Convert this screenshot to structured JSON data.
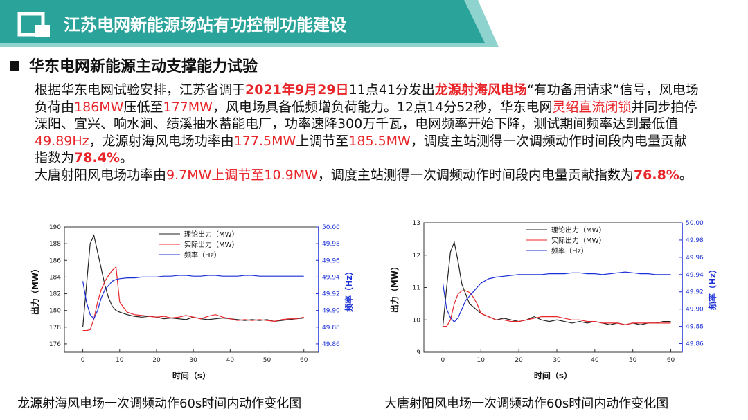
{
  "header": {
    "title": "江苏电网新能源场站有功控制功能建设"
  },
  "section": {
    "title": "华东电网新能源主动支撑能力试验"
  },
  "paragraphs": [
    [
      {
        "text": "根据华东电网试验安排，江苏省调于"
      },
      {
        "text": "2021年9月29日",
        "color": "#e8262a",
        "bold": true
      },
      {
        "text": "11点41分发出"
      },
      {
        "text": "龙源射海风电场",
        "color": "#e8262a",
        "bold": true
      },
      {
        "text": "“有功备用请求”信号，风电场负荷由"
      },
      {
        "text": "186MW",
        "color": "#e8262a"
      },
      {
        "text": "压低至"
      },
      {
        "text": "177MW",
        "color": "#e8262a"
      },
      {
        "text": "，风电场具备低频增负荷能力。12点14分52秒，华东电网"
      },
      {
        "text": "灵绍直流闭锁",
        "color": "#e8262a"
      },
      {
        "text": "并同步拍停溧阳、宜兴、响水涧、绩溪抽水蓄能电厂，功率速降300万千瓦，电网频率开始下降，测试期间频率达到最低值"
      },
      {
        "text": "49.89Hz",
        "color": "#e8262a"
      },
      {
        "text": "，龙源射海风电场功率由"
      },
      {
        "text": "177.5MW",
        "color": "#e8262a"
      },
      {
        "text": "上调节至"
      },
      {
        "text": "185.5MW",
        "color": "#e8262a"
      },
      {
        "text": "，调度主站测得一次调频动作时间段内电量贡献指数为"
      },
      {
        "text": "78.4%",
        "color": "#e8262a",
        "bold": true
      },
      {
        "text": "。"
      }
    ],
    [
      {
        "text": "大唐射阳风电场功率由"
      },
      {
        "text": "9.7MW上调节至10.9MW",
        "color": "#e8262a"
      },
      {
        "text": "，调度主站测得一次调频动作时间段内电量贡献指数为"
      },
      {
        "text": "76.8%",
        "color": "#e8262a",
        "bold": true
      },
      {
        "text": "。"
      }
    ]
  ],
  "chart_data": [
    {
      "type": "line",
      "caption": "龙源射海风电场一次调频动作60s时间内动作变化图",
      "xlabel": "时间（s）",
      "ylabel": "出力（MW）",
      "y2label": "频率（Hz）",
      "x": [
        0,
        1,
        2,
        3,
        4,
        5,
        6,
        7,
        8,
        9,
        10,
        12,
        14,
        16,
        18,
        20,
        22,
        24,
        26,
        28,
        30,
        32,
        34,
        36,
        38,
        40,
        42,
        44,
        46,
        48,
        50,
        52,
        54,
        56,
        58,
        60
      ],
      "xlim": [
        -5,
        64
      ],
      "xticks": [
        0,
        10,
        20,
        30,
        40,
        50,
        60
      ],
      "ylim": [
        175,
        190
      ],
      "yticks": [
        176,
        178,
        180,
        182,
        184,
        186,
        188,
        190
      ],
      "y2lim": [
        49.85,
        50.0
      ],
      "y2ticks": [
        {
          "value": 49.86,
          "label": "49.86"
        },
        {
          "value": 49.88,
          "label": "49.88"
        },
        {
          "value": 49.9,
          "label": "49.90"
        },
        {
          "value": 49.92,
          "label": "49.92"
        },
        {
          "value": 49.94,
          "label": "49.94"
        },
        {
          "value": 49.96,
          "label": "49.96"
        },
        {
          "value": 49.98,
          "label": "49.98"
        },
        {
          "value": 50,
          "label": "50.00"
        }
      ],
      "series": [
        {
          "name": "理论出力（MW）",
          "color": "#222222",
          "values": [
            178,
            183,
            188,
            189,
            187,
            185,
            183,
            181.5,
            180.5,
            180,
            179.8,
            179.5,
            179.3,
            179.2,
            179.3,
            179.2,
            179,
            179.1,
            179,
            178.9,
            179.2,
            179,
            178.9,
            179,
            179.1,
            179,
            178.9,
            178.8,
            178.9,
            178.8,
            178.9,
            178.7,
            178.8,
            178.9,
            179,
            179.1
          ]
        },
        {
          "name": "实际出力（MW）",
          "color": "#e8262a",
          "values": [
            177.6,
            177.6,
            177.7,
            179,
            181,
            182.5,
            183.5,
            184.2,
            184.8,
            185.2,
            181,
            179.8,
            179.5,
            179.4,
            179.3,
            179.2,
            179.3,
            179.1,
            179.2,
            179.4,
            179.2,
            179,
            179.3,
            179.5,
            179.2,
            179,
            178.8,
            178.9,
            178.8,
            178.9,
            178.8,
            178.7,
            178.9,
            179,
            179,
            179.2
          ]
        },
        {
          "name": "频率（Hz）",
          "color": "#1a2fd6",
          "axis": "y2",
          "values": [
            49.935,
            49.91,
            49.895,
            49.89,
            49.9,
            49.915,
            49.925,
            49.93,
            49.935,
            49.937,
            49.938,
            49.939,
            49.939,
            49.94,
            49.94,
            49.94,
            49.941,
            49.941,
            49.942,
            49.942,
            49.941,
            49.941,
            49.942,
            49.942,
            49.941,
            49.941,
            49.941,
            49.942,
            49.942,
            49.941,
            49.941,
            49.941,
            49.941,
            49.941,
            49.941,
            49.941
          ]
        }
      ]
    },
    {
      "type": "line",
      "caption": "大唐射阳风电场一次调频动作60s时间内动作变化图",
      "xlabel": "时间（s）",
      "ylabel": "出力（MW）",
      "y2label": "频率（Hz）",
      "x": [
        0,
        1,
        2,
        3,
        4,
        5,
        6,
        7,
        8,
        9,
        10,
        12,
        14,
        16,
        18,
        20,
        22,
        24,
        26,
        28,
        30,
        32,
        34,
        36,
        38,
        40,
        42,
        44,
        46,
        48,
        50,
        52,
        54,
        56,
        58,
        60
      ],
      "xlim": [
        -5,
        63
      ],
      "xticks": [
        0,
        10,
        20,
        30,
        40,
        50,
        60
      ],
      "ylim": [
        9,
        13
      ],
      "yticks": [
        9,
        10,
        11,
        12,
        13
      ],
      "y2lim": [
        49.85,
        50.0
      ],
      "y2ticks": [
        {
          "value": 49.86,
          "label": "49.86"
        },
        {
          "value": 49.88,
          "label": "49.88"
        },
        {
          "value": 49.9,
          "label": "49.90"
        },
        {
          "value": 49.92,
          "label": "49.92"
        },
        {
          "value": 49.94,
          "label": "49.94"
        },
        {
          "value": 49.96,
          "label": "49.96"
        },
        {
          "value": 49.98,
          "label": "49.98"
        },
        {
          "value": 50,
          "label": "50.00"
        }
      ],
      "series": [
        {
          "name": "理论出力（MW）",
          "color": "#222222",
          "values": [
            9.8,
            11,
            12.1,
            12.4,
            11.8,
            11.1,
            10.8,
            10.5,
            10.4,
            10.3,
            10.2,
            10.1,
            10,
            10.05,
            10,
            9.95,
            10,
            10.1,
            10,
            9.95,
            10,
            9.95,
            9.9,
            9.95,
            9.9,
            9.95,
            9.9,
            9.85,
            9.9,
            9.85,
            9.9,
            9.85,
            9.9,
            9.9,
            9.95,
            9.95
          ]
        },
        {
          "name": "实际出力（MW）",
          "color": "#e8262a",
          "values": [
            9.8,
            9.8,
            10,
            10.5,
            10.8,
            10.9,
            10.9,
            10.85,
            10.7,
            10.5,
            10.2,
            10.1,
            10,
            10,
            9.95,
            9.95,
            10,
            10.05,
            10.1,
            10.1,
            10.1,
            10.05,
            10,
            10,
            9.95,
            9.95,
            9.9,
            9.9,
            9.9,
            9.85,
            9.9,
            9.9,
            9.9,
            9.9,
            9.9,
            9.9
          ]
        },
        {
          "name": "频率（Hz）",
          "color": "#1a2fd6",
          "axis": "y2",
          "values": [
            49.93,
            49.9,
            49.89,
            49.885,
            49.89,
            49.9,
            49.91,
            49.915,
            49.92,
            49.925,
            49.93,
            49.935,
            49.937,
            49.938,
            49.939,
            49.94,
            49.94,
            49.94,
            49.94,
            49.941,
            49.941,
            49.941,
            49.942,
            49.942,
            49.941,
            49.941,
            49.94,
            49.941,
            49.942,
            49.943,
            49.942,
            49.941,
            49.941,
            49.94,
            49.94,
            49.94
          ]
        }
      ]
    }
  ]
}
